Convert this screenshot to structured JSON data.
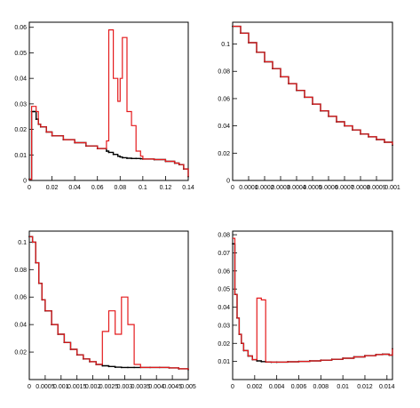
{
  "chart_data": [
    {
      "type": "line",
      "panel": "top-left",
      "xlim": [
        0,
        0.14
      ],
      "ylim": [
        0,
        0.062
      ],
      "xticks": [
        "0",
        "0.02",
        "0.04",
        "0.06",
        "0.08",
        "0.1",
        "0.12",
        "0.14"
      ],
      "yticks": [
        "0",
        "0.01",
        "0.02",
        "0.03",
        "0.04",
        "0.05",
        "0.06"
      ],
      "xtick_values": [
        0,
        0.02,
        0.04,
        0.06,
        0.08,
        0.1,
        0.12,
        0.14
      ],
      "ytick_values": [
        0,
        0.01,
        0.02,
        0.03,
        0.04,
        0.05,
        0.06
      ],
      "x": [
        0,
        0.002,
        0.004,
        0.006,
        0.008,
        0.01,
        0.015,
        0.02,
        0.03,
        0.04,
        0.05,
        0.06,
        0.068,
        0.07,
        0.074,
        0.078,
        0.08,
        0.082,
        0.086,
        0.09,
        0.094,
        0.098,
        0.1,
        0.11,
        0.12,
        0.128,
        0.132,
        0.136,
        0.14
      ],
      "series": [
        {
          "role": "black",
          "color": "#000000",
          "values": [
            0.0005,
            0.027,
            0.027,
            0.024,
            0.022,
            0.021,
            0.019,
            0.0175,
            0.016,
            0.0148,
            0.0135,
            0.0125,
            0.0115,
            0.011,
            0.0102,
            0.0095,
            0.0092,
            0.0089,
            0.0087,
            0.0086,
            0.0086,
            0.0085,
            0.0084,
            0.0082,
            0.0075,
            0.0068,
            0.0062,
            0.0045,
            0.0015
          ]
        },
        {
          "role": "red",
          "color": "#e41a1c",
          "values": [
            0.0005,
            0.029,
            0.029,
            0.027,
            0.022,
            0.021,
            0.019,
            0.0175,
            0.016,
            0.0148,
            0.0135,
            0.0125,
            0.0155,
            0.059,
            0.04,
            0.031,
            0.04,
            0.056,
            0.027,
            0.0215,
            0.0115,
            0.0095,
            0.0084,
            0.0082,
            0.0075,
            0.0068,
            0.0062,
            0.0045,
            0.0015
          ]
        }
      ]
    },
    {
      "type": "line",
      "panel": "top-right",
      "xlim": [
        0,
        0.001
      ],
      "ylim": [
        0,
        0.116
      ],
      "xticks": [
        "0",
        "0.0001",
        "0.0002",
        "0.0003",
        "0.0004",
        "0.0005",
        "0.0006",
        "0.0007",
        "0.0008",
        "0.0009",
        "0.001"
      ],
      "yticks": [
        "0",
        "0.02",
        "0.04",
        "0.06",
        "0.08",
        "0.1"
      ],
      "xtick_values": [
        0,
        0.0001,
        0.0002,
        0.0003,
        0.0004,
        0.0005,
        0.0006,
        0.0007,
        0.0008,
        0.0009,
        0.001
      ],
      "ytick_values": [
        0,
        0.02,
        0.04,
        0.06,
        0.08,
        0.1
      ],
      "x": [
        0,
        5e-05,
        0.0001,
        0.00015,
        0.0002,
        0.00025,
        0.0003,
        0.00035,
        0.0004,
        0.00045,
        0.0005,
        0.00055,
        0.0006,
        0.00065,
        0.0007,
        0.00075,
        0.0008,
        0.00085,
        0.0009,
        0.00095,
        0.001
      ],
      "series": [
        {
          "role": "black",
          "color": "#000000",
          "values": [
            0.113,
            0.108,
            0.101,
            0.094,
            0.087,
            0.082,
            0.076,
            0.071,
            0.066,
            0.061,
            0.056,
            0.051,
            0.047,
            0.043,
            0.04,
            0.037,
            0.034,
            0.032,
            0.03,
            0.028,
            0.026
          ]
        },
        {
          "role": "red",
          "color": "#e41a1c",
          "values": [
            0.113,
            0.108,
            0.101,
            0.094,
            0.087,
            0.082,
            0.076,
            0.071,
            0.066,
            0.061,
            0.056,
            0.051,
            0.047,
            0.043,
            0.04,
            0.037,
            0.034,
            0.032,
            0.03,
            0.028,
            0.026
          ]
        }
      ]
    },
    {
      "type": "line",
      "panel": "bottom-left",
      "xlim": [
        0,
        0.005
      ],
      "ylim": [
        0,
        0.108
      ],
      "xticks": [
        "0",
        "0.0005",
        "0.001",
        "0.0015",
        "0.002",
        "0.0025",
        "0.003",
        "0.0035",
        "0.004",
        "0.0045",
        "0.005"
      ],
      "yticks": [
        "0.02",
        "0.04",
        "0.06",
        "0.08",
        "0.1"
      ],
      "xtick_values": [
        0,
        0.0005,
        0.001,
        0.0015,
        0.002,
        0.0025,
        0.003,
        0.0035,
        0.004,
        0.0045,
        0.005
      ],
      "ytick_values": [
        0.02,
        0.04,
        0.06,
        0.08,
        0.1
      ],
      "x": [
        0,
        0.0001,
        0.0002,
        0.0003,
        0.0004,
        0.0005,
        0.0007,
        0.0009,
        0.0011,
        0.0013,
        0.0015,
        0.0017,
        0.0019,
        0.0021,
        0.0023,
        0.0025,
        0.0027,
        0.0029,
        0.0031,
        0.0033,
        0.0035,
        0.0038,
        0.0041,
        0.0044,
        0.0047,
        0.005
      ],
      "series": [
        {
          "role": "black",
          "color": "#000000",
          "values": [
            0.104,
            0.1,
            0.085,
            0.07,
            0.058,
            0.05,
            0.04,
            0.033,
            0.027,
            0.022,
            0.018,
            0.015,
            0.013,
            0.011,
            0.01,
            0.0095,
            0.009,
            0.0088,
            0.0088,
            0.0088,
            0.0088,
            0.0088,
            0.0088,
            0.0085,
            0.0078,
            0.0072
          ]
        },
        {
          "role": "red",
          "color": "#e41a1c",
          "values": [
            0.104,
            0.1,
            0.085,
            0.07,
            0.058,
            0.05,
            0.04,
            0.033,
            0.027,
            0.022,
            0.018,
            0.015,
            0.013,
            0.011,
            0.035,
            0.05,
            0.033,
            0.06,
            0.04,
            0.011,
            0.0088,
            0.0088,
            0.0088,
            0.0085,
            0.0078,
            0.0072
          ]
        }
      ]
    },
    {
      "type": "line",
      "panel": "bottom-right",
      "xlim": [
        0,
        0.0145
      ],
      "ylim": [
        0,
        0.082
      ],
      "xticks": [
        "0",
        "0.002",
        "0.004",
        "0.006",
        "0.008",
        "0.01",
        "0.012",
        "0.014"
      ],
      "yticks": [
        "0.01",
        "0.02",
        "0.03",
        "0.04",
        "0.05",
        "0.06",
        "0.07",
        "0.08"
      ],
      "xtick_values": [
        0,
        0.002,
        0.004,
        0.006,
        0.008,
        0.01,
        0.012,
        0.014
      ],
      "ytick_values": [
        0.01,
        0.02,
        0.03,
        0.04,
        0.05,
        0.06,
        0.07,
        0.08
      ],
      "x": [
        0,
        0.0002,
        0.0004,
        0.0006,
        0.0008,
        0.001,
        0.0014,
        0.0018,
        0.0022,
        0.0026,
        0.003,
        0.0035,
        0.004,
        0.005,
        0.006,
        0.007,
        0.008,
        0.009,
        0.01,
        0.011,
        0.012,
        0.013,
        0.0136,
        0.0142,
        0.0145
      ],
      "series": [
        {
          "role": "black",
          "color": "#000000",
          "values": [
            0.075,
            0.047,
            0.034,
            0.025,
            0.02,
            0.016,
            0.013,
            0.011,
            0.0103,
            0.0099,
            0.0097,
            0.0096,
            0.0096,
            0.0098,
            0.01,
            0.0103,
            0.0107,
            0.0112,
            0.0118,
            0.0125,
            0.0132,
            0.0138,
            0.014,
            0.0135,
            0.017
          ]
        },
        {
          "role": "red",
          "color": "#e41a1c",
          "values": [
            0.078,
            0.047,
            0.034,
            0.025,
            0.02,
            0.016,
            0.013,
            0.011,
            0.045,
            0.044,
            0.0097,
            0.0096,
            0.0096,
            0.0098,
            0.01,
            0.0103,
            0.0107,
            0.0112,
            0.0118,
            0.0125,
            0.0132,
            0.0138,
            0.014,
            0.0135,
            0.017
          ]
        }
      ]
    }
  ]
}
